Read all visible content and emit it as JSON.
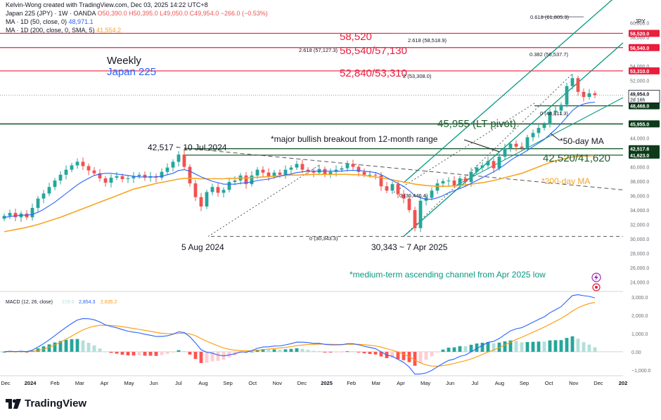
{
  "header": {
    "creator": "Kelvin-Wong created with TradingView.com, Dec 03, 2025 14:22 UTC+8",
    "symbol": "Japan 225 (JPY) · 1W · OANDA",
    "ohlc": "O50,390.0  H50,395.0  L49,050.0  C49,954.0  −266.0 (−0.53%)",
    "ma50_label": "MA · 1D (50, close, 0)",
    "ma50_value": "48,971.1",
    "ma200_label": "MA · 1D (200, close, 0, SMA, 5)",
    "ma200_value": "41,554.2",
    "currency": "JPY"
  },
  "colors": {
    "up": "#26a69a",
    "down": "#ef5350",
    "ma50": "#2962ff",
    "ma200": "#f5a623",
    "channel": "#089981",
    "resistance": "#e91e3c",
    "pivot": "#1e5e2f",
    "macd_line": "#2962ff",
    "signal_line": "#ff9800",
    "hist_up_strong": "#26a69a",
    "hist_up_weak": "#b2dfdb",
    "hist_down_strong": "#ff5252",
    "hist_down_weak": "#ffcdd2"
  },
  "annotations": {
    "weekly": "Weekly",
    "instrument": "Japan 225",
    "r58520": "58,520",
    "r56540": "56,540/57,130",
    "r52840": "52,840/53,310",
    "pivot": "45,955 (LT pivot)",
    "support": "42,520/41,620",
    "breakout": "*major bullish breakout from 12-month range",
    "ma50_note": "*50-day MA",
    "ma200_note": "*200-day MA",
    "high_2024": "42,517 ~ 10 Jul 2024",
    "low_aug": "5 Aug 2024",
    "low_apr": "30,343 ~ 7 Apr 2025",
    "channel_note": "*medium-term ascending channel from Apr 2025 low",
    "fib_0618_top": "0.618 (61,805.3)",
    "fib_2618_a": "2.618 (58,518.9)",
    "fib_2618_b": "2.618 (57,127.3)",
    "fib_0382": "0.382 (56,537.7)",
    "fib_2_a": "2 (53,308.0)",
    "fib_0_high": "0 (48,811.3)",
    "fib_0_low": "0 (30,343.3)",
    "fib_0_mid": "0 (36,446.4)"
  },
  "price_axis": {
    "ticks": [
      "60,000.0",
      "58,000.0",
      "54,000.0",
      "52,000.0",
      "50,000.0",
      "46,000.0",
      "44,000.0",
      "40,000.0",
      "38,000.0",
      "36,000.0",
      "34,000.0",
      "32,000.0",
      "30,000.0",
      "28,000.0",
      "26,000.0",
      "24,000.0"
    ],
    "tick_values": [
      60000,
      58000,
      54000,
      52000,
      50000,
      46000,
      44000,
      40000,
      38000,
      36000,
      34000,
      32000,
      30000,
      28000,
      26000,
      24000
    ],
    "labels": [
      {
        "text": "58,520.0",
        "value": 58520,
        "kind": "resistance"
      },
      {
        "text": "56,540.0",
        "value": 56540,
        "kind": "resistance"
      },
      {
        "text": "53,310.0",
        "value": 53310,
        "kind": "resistance"
      },
      {
        "text": "48,468.0",
        "value": 48468,
        "kind": "pivot"
      },
      {
        "text": "45,955.0",
        "value": 45955,
        "kind": "pivot"
      },
      {
        "text": "42,517.6",
        "value": 42517.6,
        "kind": "pivot"
      },
      {
        "text": "41,623.0",
        "value": 41623,
        "kind": "pivot"
      }
    ],
    "current_price": "49,954.0",
    "countdown": "2d 16h"
  },
  "macd": {
    "label": "MACD (12, 26, close)",
    "hist_value": "219.0",
    "macd_value": "2,854.3",
    "signal_value": "2,635.2",
    "ticks": [
      "3,000.0",
      "2,000.0",
      "1,000.0",
      "0.00",
      "−1,000.0"
    ],
    "tick_values": [
      3000,
      2000,
      1000,
      0,
      -1000
    ]
  },
  "time_axis": [
    "Dec",
    "2024",
    "Feb",
    "Mar",
    "Apr",
    "May",
    "Jun",
    "Jul",
    "Aug",
    "Sep",
    "Oct",
    "Nov",
    "Dec",
    "2025",
    "Feb",
    "Mar",
    "Apr",
    "May",
    "Jun",
    "Jul",
    "Aug",
    "Sep",
    "Oct",
    "Nov",
    "Dec",
    "202"
  ],
  "footer": {
    "brand": "TradingView"
  },
  "chart_data": {
    "type": "candlestick",
    "interval": "1W",
    "price_range": [
      23000,
      61000
    ],
    "key_levels": [
      58520,
      56540,
      57130,
      53310,
      52840,
      45955,
      42520,
      41620,
      30343
    ],
    "macd_range": [
      -1200,
      3200
    ],
    "series": [
      {
        "name": "Japan 225 weekly closes (approx)",
        "values": [
          33200,
          33600,
          33000,
          33500,
          33000,
          34300,
          35600,
          36300,
          37200,
          38100,
          38900,
          39600,
          40200,
          40700,
          40100,
          39500,
          39100,
          38400,
          37800,
          38500,
          38700,
          38300,
          38400,
          38700,
          38900,
          38500,
          38700,
          38500,
          39300,
          39900,
          40700,
          41700,
          40000,
          37700,
          35800,
          34500,
          36500,
          37200,
          36400,
          36800,
          37900,
          38100,
          38800,
          37600,
          38800,
          39600,
          39200,
          38700,
          39200,
          38900,
          39600,
          39900,
          40400,
          39600,
          39400,
          39200,
          39700,
          39000,
          39300,
          39600,
          39800,
          40400,
          40000,
          39300,
          38900,
          38900,
          38800,
          37300,
          36700,
          37600,
          36200,
          35600,
          34000,
          31500,
          35300,
          35700,
          36700,
          37700,
          38000,
          38100,
          37400,
          38400,
          37900,
          39300,
          39900,
          40200,
          40800,
          39800,
          41400,
          42600,
          43200,
          42800,
          42600,
          44100,
          44700,
          45400,
          45900,
          47600,
          47800,
          48600,
          51200,
          52300,
          50400,
          49700,
          50200,
          49954
        ]
      },
      {
        "name": "MA 1D (50) approx",
        "values": [
          33000,
          33100,
          33200,
          33300,
          33300,
          33400,
          33700,
          34100,
          34600,
          35100,
          35700,
          36300,
          36900,
          37500,
          38000,
          38400,
          38800,
          39000,
          39100,
          39100,
          39000,
          38900,
          38800,
          38700,
          38600,
          38600,
          38600,
          38600,
          38700,
          38900,
          39100,
          39500,
          39600,
          39400,
          39000,
          38600,
          38300,
          38000,
          37800,
          37600,
          37600,
          37600,
          37700,
          37800,
          37900,
          38100,
          38200,
          38300,
          38500,
          38700,
          38900,
          39000,
          39200,
          39300,
          39400,
          39400,
          39400,
          39400,
          39400,
          39400,
          39400,
          39500,
          39500,
          39500,
          39400,
          39300,
          39200,
          38900,
          38500,
          38100,
          37700,
          37300,
          36700,
          36000,
          35700,
          35500,
          35500,
          35700,
          36000,
          36400,
          36700,
          37000,
          37300,
          37700,
          38100,
          38500,
          38900,
          39300,
          39800,
          40300,
          40900,
          41400,
          41800,
          42300,
          42800,
          43300,
          43800,
          44500,
          45200,
          46000,
          46900,
          47800,
          48400,
          48700,
          48900,
          48971
        ]
      },
      {
        "name": "MA 1D (200) approx",
        "values": [
          31000,
          31150,
          31300,
          31450,
          31600,
          31800,
          32000,
          32250,
          32500,
          32750,
          33000,
          33300,
          33600,
          33900,
          34200,
          34500,
          34800,
          35100,
          35400,
          35700,
          36000,
          36300,
          36600,
          36900,
          37100,
          37300,
          37500,
          37700,
          37850,
          38000,
          38150,
          38300,
          38400,
          38400,
          38400,
          38350,
          38350,
          38350,
          38350,
          38350,
          38400,
          38400,
          38450,
          38450,
          38500,
          38550,
          38600,
          38650,
          38700,
          38750,
          38800,
          38850,
          38850,
          38900,
          38900,
          38950,
          38950,
          38950,
          38950,
          38950,
          38950,
          38950,
          38900,
          38900,
          38800,
          38700,
          38600,
          38500,
          38350,
          38200,
          38050,
          37900,
          37750,
          37600,
          37500,
          37400,
          37350,
          37300,
          37300,
          37300,
          37350,
          37400,
          37500,
          37600,
          37700,
          37800,
          37950,
          38100,
          38300,
          38500,
          38700,
          38900,
          39100,
          39400,
          39700,
          40000,
          40300,
          40600,
          40850,
          41050,
          41200,
          41350,
          41450,
          41500,
          41530,
          41554
        ]
      }
    ]
  }
}
